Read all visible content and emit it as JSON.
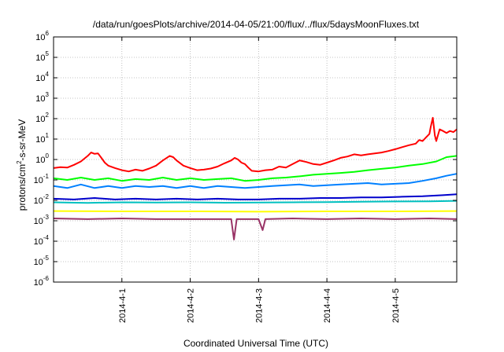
{
  "chart_data": {
    "type": "line",
    "title": "/data/run/goesPlots/archive/2014-04-05/21:00/flux/../flux/5daysMoonFluxes.txt",
    "xlabel": "Coordinated Universal Time (UTC)",
    "ylabel": {
      "prefix": "protons/cm",
      "sup": "2",
      "suffix": "-s-sr-MeV"
    },
    "x_unit": "days",
    "x_start": "2014-03-31 00:00",
    "xlim": [
      0,
      5.9
    ],
    "x_ticks": [
      {
        "label": "2014-4-1",
        "x": 1
      },
      {
        "label": "2014-4-2",
        "x": 2
      },
      {
        "label": "2014-4-3",
        "x": 3
      },
      {
        "label": "2014-4-4",
        "x": 4
      },
      {
        "label": "2014-4-5",
        "x": 5
      }
    ],
    "y_scale": "log",
    "ylim": [
      1e-06,
      1000000.0
    ],
    "y_ticks": [
      {
        "base": "10",
        "exp": "-6",
        "v": 1e-06
      },
      {
        "base": "10",
        "exp": "-5",
        "v": 1e-05
      },
      {
        "base": "10",
        "exp": "-4",
        "v": 0.0001
      },
      {
        "base": "10",
        "exp": "-3",
        "v": 0.001
      },
      {
        "base": "10",
        "exp": "-2",
        "v": 0.01
      },
      {
        "base": "10",
        "exp": "-1",
        "v": 0.1
      },
      {
        "base": "10",
        "exp": "0",
        "v": 1
      },
      {
        "base": "10",
        "exp": "1",
        "v": 10
      },
      {
        "base": "10",
        "exp": "2",
        "v": 100
      },
      {
        "base": "10",
        "exp": "3",
        "v": 1000
      },
      {
        "base": "10",
        "exp": "4",
        "v": 10000
      },
      {
        "base": "10",
        "exp": "5",
        "v": 100000
      },
      {
        "base": "10",
        "exp": "6",
        "v": 1000000
      }
    ],
    "grid": true,
    "legend": "none",
    "series": [
      {
        "color": "#ff0000",
        "points": [
          [
            0,
            0.38
          ],
          [
            0.1,
            0.42
          ],
          [
            0.2,
            0.4
          ],
          [
            0.3,
            0.55
          ],
          [
            0.4,
            0.8
          ],
          [
            0.5,
            1.5
          ],
          [
            0.55,
            2.2
          ],
          [
            0.6,
            1.9
          ],
          [
            0.65,
            2.0
          ],
          [
            0.7,
            1.2
          ],
          [
            0.75,
            0.7
          ],
          [
            0.8,
            0.5
          ],
          [
            0.9,
            0.38
          ],
          [
            1.0,
            0.3
          ],
          [
            1.1,
            0.26
          ],
          [
            1.2,
            0.32
          ],
          [
            1.3,
            0.28
          ],
          [
            1.4,
            0.36
          ],
          [
            1.5,
            0.5
          ],
          [
            1.6,
            0.9
          ],
          [
            1.7,
            1.5
          ],
          [
            1.75,
            1.3
          ],
          [
            1.8,
            0.9
          ],
          [
            1.9,
            0.5
          ],
          [
            2.0,
            0.38
          ],
          [
            2.1,
            0.3
          ],
          [
            2.2,
            0.32
          ],
          [
            2.3,
            0.36
          ],
          [
            2.4,
            0.45
          ],
          [
            2.5,
            0.65
          ],
          [
            2.6,
            0.9
          ],
          [
            2.65,
            1.2
          ],
          [
            2.7,
            1.0
          ],
          [
            2.75,
            0.7
          ],
          [
            2.8,
            0.6
          ],
          [
            2.85,
            0.4
          ],
          [
            2.9,
            0.28
          ],
          [
            3.0,
            0.26
          ],
          [
            3.1,
            0.3
          ],
          [
            3.2,
            0.32
          ],
          [
            3.3,
            0.45
          ],
          [
            3.4,
            0.4
          ],
          [
            3.5,
            0.6
          ],
          [
            3.6,
            0.9
          ],
          [
            3.7,
            0.75
          ],
          [
            3.8,
            0.6
          ],
          [
            3.9,
            0.55
          ],
          [
            4.0,
            0.7
          ],
          [
            4.1,
            0.9
          ],
          [
            4.2,
            1.2
          ],
          [
            4.3,
            1.4
          ],
          [
            4.4,
            1.8
          ],
          [
            4.5,
            1.6
          ],
          [
            4.6,
            1.8
          ],
          [
            4.7,
            2.0
          ],
          [
            4.8,
            2.2
          ],
          [
            4.9,
            2.6
          ],
          [
            5.0,
            3.2
          ],
          [
            5.1,
            4.0
          ],
          [
            5.2,
            5.0
          ],
          [
            5.3,
            6.0
          ],
          [
            5.35,
            9.0
          ],
          [
            5.4,
            8.0
          ],
          [
            5.45,
            12
          ],
          [
            5.5,
            18
          ],
          [
            5.52,
            40
          ],
          [
            5.55,
            110
          ],
          [
            5.58,
            15
          ],
          [
            5.6,
            8
          ],
          [
            5.65,
            30
          ],
          [
            5.7,
            25
          ],
          [
            5.75,
            20
          ],
          [
            5.8,
            25
          ],
          [
            5.85,
            22
          ],
          [
            5.9,
            30
          ]
        ]
      },
      {
        "color": "#00ff00",
        "points": [
          [
            0,
            0.12
          ],
          [
            0.2,
            0.1
          ],
          [
            0.4,
            0.13
          ],
          [
            0.6,
            0.1
          ],
          [
            0.8,
            0.12
          ],
          [
            1.0,
            0.09
          ],
          [
            1.2,
            0.11
          ],
          [
            1.4,
            0.1
          ],
          [
            1.6,
            0.13
          ],
          [
            1.8,
            0.1
          ],
          [
            2.0,
            0.12
          ],
          [
            2.2,
            0.1
          ],
          [
            2.4,
            0.11
          ],
          [
            2.6,
            0.12
          ],
          [
            2.8,
            0.09
          ],
          [
            3.0,
            0.1
          ],
          [
            3.2,
            0.12
          ],
          [
            3.4,
            0.13
          ],
          [
            3.6,
            0.15
          ],
          [
            3.8,
            0.18
          ],
          [
            4.0,
            0.2
          ],
          [
            4.2,
            0.22
          ],
          [
            4.4,
            0.25
          ],
          [
            4.6,
            0.3
          ],
          [
            4.8,
            0.35
          ],
          [
            5.0,
            0.4
          ],
          [
            5.2,
            0.5
          ],
          [
            5.4,
            0.6
          ],
          [
            5.6,
            0.8
          ],
          [
            5.75,
            1.3
          ],
          [
            5.9,
            1.5
          ]
        ]
      },
      {
        "color": "#0080ff",
        "points": [
          [
            0,
            0.05
          ],
          [
            0.2,
            0.04
          ],
          [
            0.4,
            0.06
          ],
          [
            0.6,
            0.04
          ],
          [
            0.8,
            0.05
          ],
          [
            1.0,
            0.04
          ],
          [
            1.2,
            0.05
          ],
          [
            1.4,
            0.045
          ],
          [
            1.6,
            0.05
          ],
          [
            1.8,
            0.04
          ],
          [
            2.0,
            0.05
          ],
          [
            2.2,
            0.04
          ],
          [
            2.4,
            0.05
          ],
          [
            2.6,
            0.045
          ],
          [
            2.8,
            0.04
          ],
          [
            3.0,
            0.045
          ],
          [
            3.2,
            0.05
          ],
          [
            3.4,
            0.055
          ],
          [
            3.6,
            0.06
          ],
          [
            3.8,
            0.05
          ],
          [
            4.0,
            0.055
          ],
          [
            4.2,
            0.06
          ],
          [
            4.4,
            0.065
          ],
          [
            4.6,
            0.07
          ],
          [
            4.8,
            0.06
          ],
          [
            5.0,
            0.065
          ],
          [
            5.2,
            0.07
          ],
          [
            5.4,
            0.09
          ],
          [
            5.6,
            0.12
          ],
          [
            5.75,
            0.16
          ],
          [
            5.9,
            0.2
          ]
        ]
      },
      {
        "color": "#0000cc",
        "points": [
          [
            0,
            0.012
          ],
          [
            0.3,
            0.011
          ],
          [
            0.6,
            0.013
          ],
          [
            0.9,
            0.011
          ],
          [
            1.2,
            0.012
          ],
          [
            1.5,
            0.011
          ],
          [
            1.8,
            0.012
          ],
          [
            2.1,
            0.011
          ],
          [
            2.4,
            0.012
          ],
          [
            2.7,
            0.011
          ],
          [
            3.0,
            0.011
          ],
          [
            3.3,
            0.012
          ],
          [
            3.6,
            0.012
          ],
          [
            3.9,
            0.013
          ],
          [
            4.2,
            0.013
          ],
          [
            4.5,
            0.014
          ],
          [
            4.8,
            0.014
          ],
          [
            5.1,
            0.015
          ],
          [
            5.4,
            0.016
          ],
          [
            5.7,
            0.018
          ],
          [
            5.9,
            0.02
          ]
        ]
      },
      {
        "color": "#00c0c0",
        "points": [
          [
            0,
            0.008
          ],
          [
            0.5,
            0.0075
          ],
          [
            1.0,
            0.008
          ],
          [
            1.5,
            0.0078
          ],
          [
            2.0,
            0.008
          ],
          [
            2.5,
            0.0077
          ],
          [
            3.0,
            0.0078
          ],
          [
            3.5,
            0.008
          ],
          [
            4.0,
            0.0082
          ],
          [
            4.5,
            0.0085
          ],
          [
            5.0,
            0.0088
          ],
          [
            5.5,
            0.009
          ],
          [
            5.9,
            0.0095
          ]
        ]
      },
      {
        "color": "#ffff00",
        "points": [
          [
            0,
            0.003
          ],
          [
            1.0,
            0.0029
          ],
          [
            2.0,
            0.0029
          ],
          [
            3.0,
            0.0028
          ],
          [
            4.0,
            0.0029
          ],
          [
            5.0,
            0.0029
          ],
          [
            5.9,
            0.003
          ]
        ]
      },
      {
        "color": "#993366",
        "points": [
          [
            0,
            0.0013
          ],
          [
            0.5,
            0.0012
          ],
          [
            1.0,
            0.0013
          ],
          [
            1.5,
            0.0012
          ],
          [
            2.0,
            0.0012
          ],
          [
            2.5,
            0.0012
          ],
          [
            2.6,
            0.0012
          ],
          [
            2.64,
            0.00012
          ],
          [
            2.68,
            0.0012
          ],
          [
            3.0,
            0.0012
          ],
          [
            3.06,
            0.00035
          ],
          [
            3.1,
            0.0012
          ],
          [
            3.5,
            0.0013
          ],
          [
            4.0,
            0.0012
          ],
          [
            4.5,
            0.0013
          ],
          [
            5.0,
            0.0012
          ],
          [
            5.5,
            0.0013
          ],
          [
            5.9,
            0.0012
          ]
        ]
      }
    ]
  }
}
